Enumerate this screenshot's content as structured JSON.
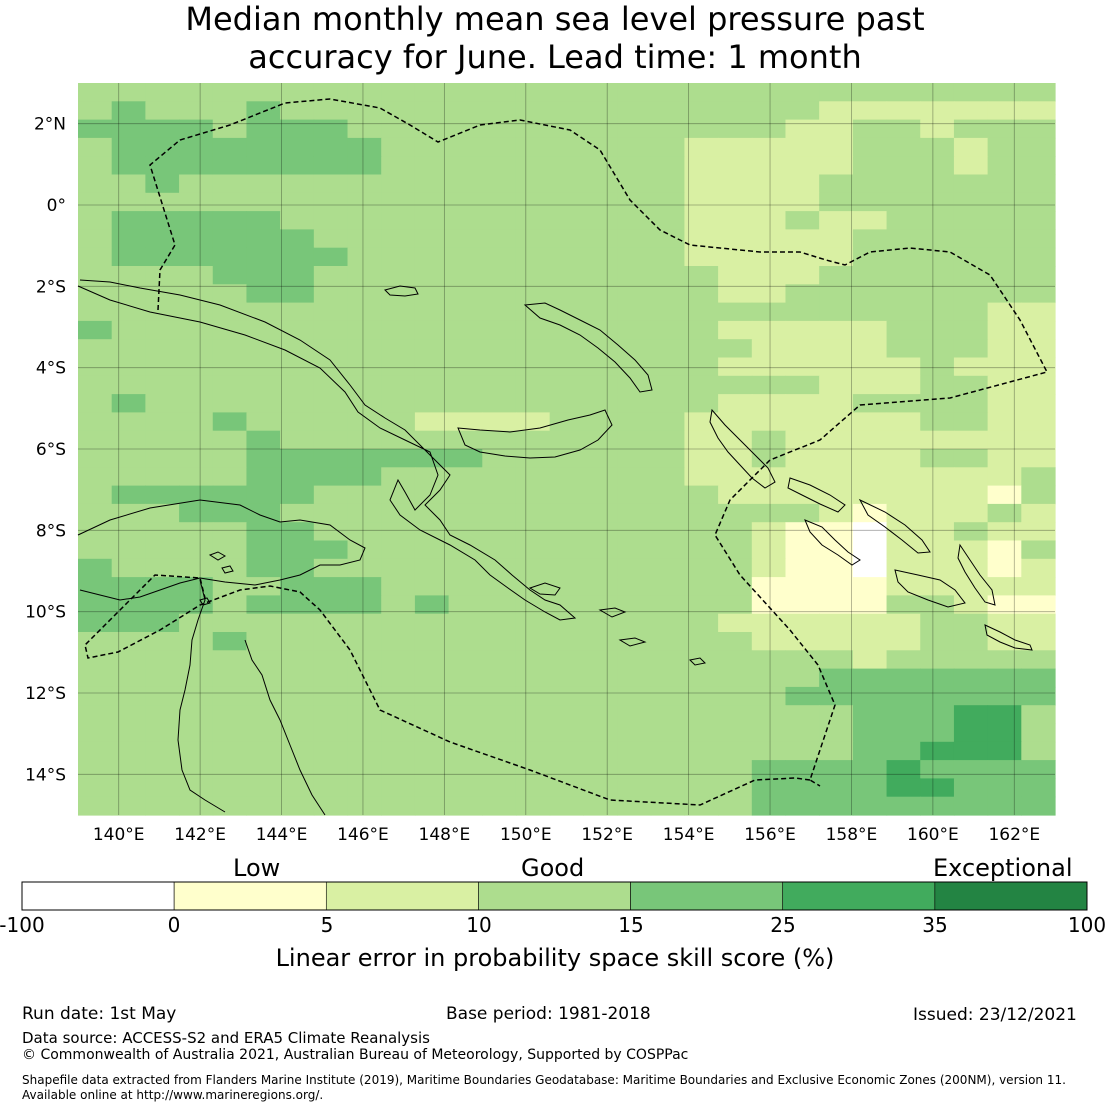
{
  "title": {
    "line1": "Median monthly mean sea level pressure past",
    "line2": "accuracy for June. Lead time: 1 month"
  },
  "map": {
    "lat_range": [
      -15,
      3
    ],
    "lon_range": [
      139,
      163
    ],
    "cell_deg": 0.833,
    "lat_ticks": [
      "2°N",
      "0°",
      "2°S",
      "4°S",
      "6°S",
      "8°S",
      "10°S",
      "12°S",
      "14°S"
    ],
    "lon_ticks": [
      "140°E",
      "142°E",
      "144°E",
      "146°E",
      "148°E",
      "150°E",
      "152°E",
      "154°E",
      "156°E",
      "158°E",
      "160°E",
      "162°E"
    ],
    "skill_grid_rows_north_to_south": [
      "33333333333333333333333333333",
      "34333433333333333333332222222",
      "44443444333333333333322332333",
      "34444444433333333322222333233",
      "34444444433333333322222333233",
      "33433333333333333322223333333",
      "33333333333333333322223333333",
      "34444433333333333322232233333",
      "34444443333333333322222333333",
      "34444444333333333322222333333",
      "33334443333333333332223333333",
      "33333443333333333332233333333",
      "33333333333333333333333333322",
      "43333333333333333332222233322",
      "33333333333333333333222233322",
      "33333333333333333332222223222",
      "33333333333333333333332223322",
      "34333333333333333332222333322",
      "33334333332222333322222223322",
      "33333433333333333322322222222",
      "33333444444433333322322223322",
      "33333444433333333322222222223",
      "34444443333333333332222222213",
      "33344433333333333333332122232",
      "33333443333333333333211022322",
      "33333444333333333333211022213",
      "43333443333333333333211022212",
      "44443344433333333333111122222",
      "44443444434333333333111133211",
      "44433333333333333332222223322",
      "33334333333333333333222223322",
      "33333333333333333333333233333",
      "33333333333333333333334444444",
      "33333333333333333333344444444",
      "33333333333333333333333444553",
      "33333333333333333333333444553",
      "33333333333333333333333445553",
      "33333333333333333333444454444",
      "33333333333333333333444455444",
      "33333333333333333333444444444"
    ]
  },
  "colorbar": {
    "categories": [
      "Low",
      "Good",
      "Exceptional"
    ],
    "ticks": [
      "-100",
      "0",
      "5",
      "10",
      "15",
      "25",
      "35",
      "100"
    ],
    "colors": [
      "#ffffff",
      "#ffffcc",
      "#d9f0a3",
      "#addd8e",
      "#78c679",
      "#41ab5d",
      "#238443"
    ],
    "label": "Linear error in probability space skill score (%)"
  },
  "footer": {
    "run_date": "Run date: 1st May",
    "base_period": "Base period: 1981-2018",
    "issued": "Issued: 23/12/2021",
    "data_source": "Data source: ACCESS-S2 and ERA5 Climate Reanalysis",
    "copyright": "© Commonwealth of Australia 2021, Australian Bureau of Meteorology, Supported by COSPPac",
    "shapefile_line1": "Shapefile data extracted from Flanders Marine Institute (2019), Maritime Boundaries Geodatabase: Maritime Boundaries and Exclusive Economic Zones (200NM), version 11.",
    "shapefile_line2": "Available online at http://www.marineregions.org/."
  }
}
